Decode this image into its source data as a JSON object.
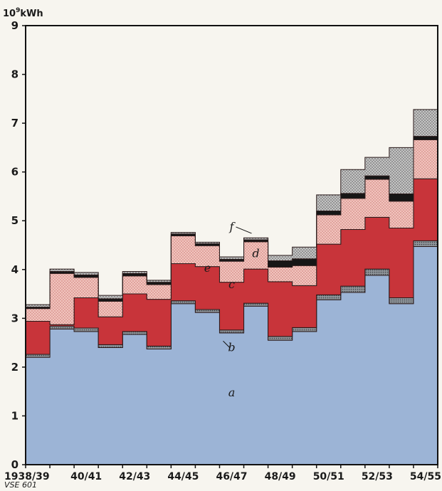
{
  "chart_data": {
    "type": "area",
    "stacked": true,
    "step": true,
    "unit_label": "10⁹kWh",
    "source_code": "VSE 601",
    "periods": [
      "1938/39",
      "1939/40",
      "1940/41",
      "1941/42",
      "1942/43",
      "1943/44",
      "1944/45",
      "1945/46",
      "1946/47",
      "1947/48",
      "1948/49",
      "1949/50",
      "1950/51",
      "1951/52",
      "1952/53",
      "1953/54",
      "1954/55"
    ],
    "x_tick_labels": [
      "1938/39",
      "40/41",
      "42/43",
      "44/45",
      "46/47",
      "48/49",
      "50/51",
      "52/53",
      "54/55"
    ],
    "ylim": [
      0,
      9
    ],
    "y_ticks": [
      "0",
      "1",
      "2",
      "3",
      "4",
      "5",
      "6",
      "7",
      "8",
      "9"
    ],
    "grid": false,
    "series": [
      {
        "name": "a",
        "color": "#9cb4d6",
        "values": [
          2.2,
          2.78,
          2.73,
          2.4,
          2.67,
          2.37,
          3.3,
          3.12,
          2.7,
          3.25,
          2.55,
          2.73,
          3.38,
          3.53,
          3.88,
          3.3,
          4.47
        ]
      },
      {
        "name": "b",
        "color": "#8a8e94",
        "values": [
          0.06,
          0.06,
          0.07,
          0.06,
          0.06,
          0.06,
          0.06,
          0.06,
          0.06,
          0.06,
          0.08,
          0.08,
          0.1,
          0.13,
          0.13,
          0.12,
          0.12
        ]
      },
      {
        "name": "c",
        "color": "#c8343a",
        "values": [
          0.68,
          0.03,
          0.62,
          0.57,
          0.77,
          0.96,
          0.76,
          0.88,
          0.98,
          0.7,
          1.12,
          0.86,
          1.04,
          1.16,
          1.06,
          1.43,
          1.27
        ]
      },
      {
        "name": "e",
        "color": "#eebab4",
        "values": [
          0.26,
          1.05,
          0.42,
          0.32,
          0.37,
          0.3,
          0.57,
          0.43,
          0.43,
          0.56,
          0.3,
          0.41,
          0.6,
          0.64,
          0.78,
          0.55,
          0.8
        ]
      },
      {
        "name": "d",
        "color": "#161616",
        "values": [
          0.03,
          0.04,
          0.05,
          0.05,
          0.05,
          0.05,
          0.04,
          0.04,
          0.04,
          0.04,
          0.13,
          0.14,
          0.08,
          0.1,
          0.07,
          0.15,
          0.07
        ]
      },
      {
        "name": "f",
        "color": "#b4b4b4",
        "values": [
          0.05,
          0.05,
          0.05,
          0.07,
          0.04,
          0.04,
          0.03,
          0.03,
          0.05,
          0.04,
          0.11,
          0.24,
          0.33,
          0.49,
          0.38,
          0.95,
          0.55
        ]
      }
    ],
    "annotations": [
      {
        "text": "a",
        "series": "a",
        "period": "1946/47",
        "value": 1.4
      },
      {
        "text": "b",
        "series": "b",
        "period": "1946/47",
        "value": 2.33
      },
      {
        "text": "c",
        "series": "c",
        "period": "1946/47",
        "value": 3.62
      },
      {
        "text": "e",
        "series": "e",
        "period": "1945/46",
        "value": 3.95
      },
      {
        "text": "d",
        "series": "d",
        "period": "1947/48",
        "value": 4.25
      },
      {
        "text": "f",
        "series": "f",
        "period": "1946/47",
        "value": 4.8
      }
    ]
  }
}
